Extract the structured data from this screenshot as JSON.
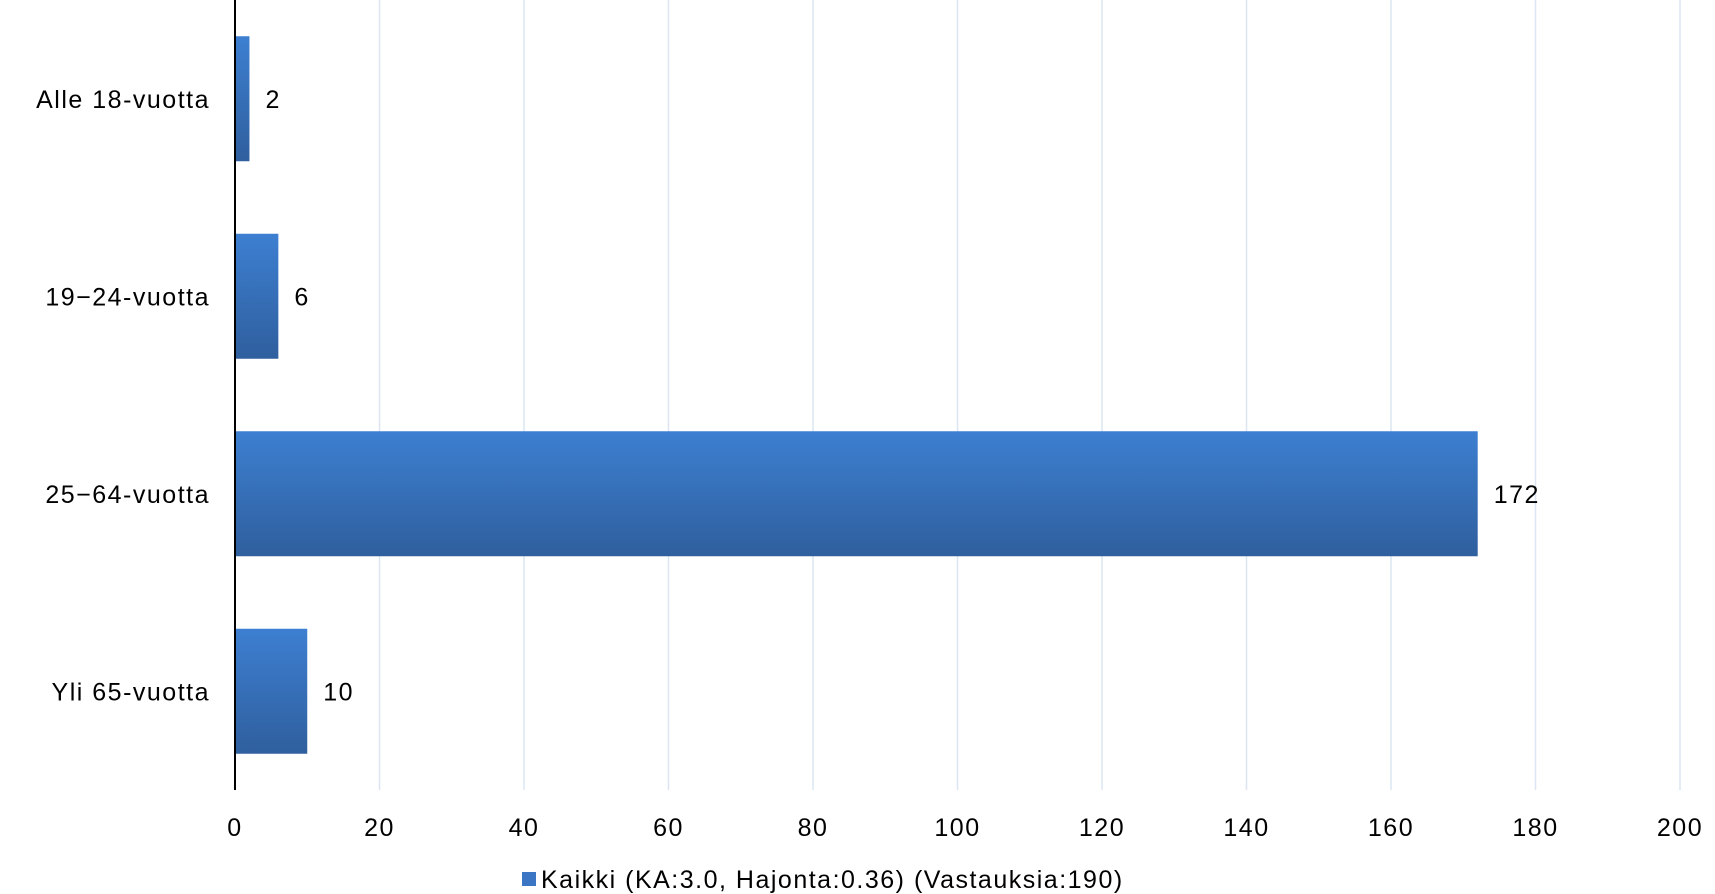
{
  "chart_data": {
    "type": "bar",
    "orientation": "horizontal",
    "title": "",
    "xlabel": "",
    "ylabel": "",
    "categories": [
      "Alle 18-vuotta",
      "19−24-vuotta",
      "25−64-vuotta",
      "Yli 65-vuotta"
    ],
    "series": [
      {
        "name": "Kaikki (KA:3.0, Hajonta:0.36) (Vastauksia:190)",
        "values": [
          2,
          6,
          172,
          10
        ]
      }
    ],
    "xlim": [
      0,
      200
    ],
    "x_ticks": [
      0,
      20,
      40,
      60,
      80,
      100,
      120,
      140,
      160,
      180,
      200
    ],
    "grid": true,
    "legend_position": "bottom",
    "colors": {
      "bar": "#3a76c4",
      "bar_dark": "#2e5d9c",
      "grid": "#dce6f2",
      "axis": "#000000"
    }
  }
}
